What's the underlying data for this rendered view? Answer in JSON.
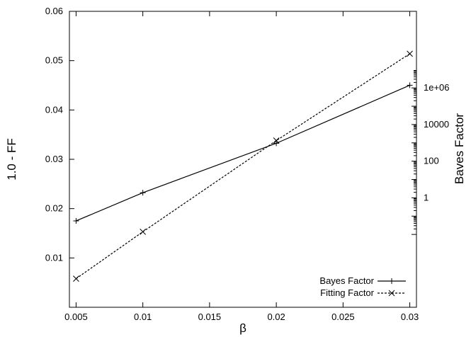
{
  "chart_data": {
    "type": "line",
    "x": [
      0.005,
      0.01,
      0.02,
      0.03
    ],
    "xlabel": "β",
    "ylabel": "1.0 - FF",
    "y2label": "Baves Factor",
    "xlim": [
      0.0045,
      0.0305
    ],
    "ylim": [
      0,
      0.06
    ],
    "y2_scale": "log",
    "x_ticks": [
      "0.005",
      "0.01",
      "0.015",
      "0.02",
      "0.025",
      "0.03"
    ],
    "y_ticks": [
      "0.01",
      "0.02",
      "0.03",
      "0.04",
      "0.05",
      "0.06"
    ],
    "y2_ticks": [
      "1",
      "100",
      "10000",
      "1e+06"
    ],
    "grid": false,
    "legend_position": "bottom-right",
    "series": [
      {
        "name": "Bayes Factor",
        "axis": "right",
        "marker": "plus",
        "line": "solid",
        "values": [
          0.055,
          1.9,
          950,
          1400000
        ],
        "color": "#000000"
      },
      {
        "name": "Fitting Factor",
        "axis": "left",
        "marker": "x",
        "line": "dashed",
        "values": [
          0.0058,
          0.0153,
          0.0338,
          0.0514
        ],
        "color": "#000000"
      }
    ]
  }
}
